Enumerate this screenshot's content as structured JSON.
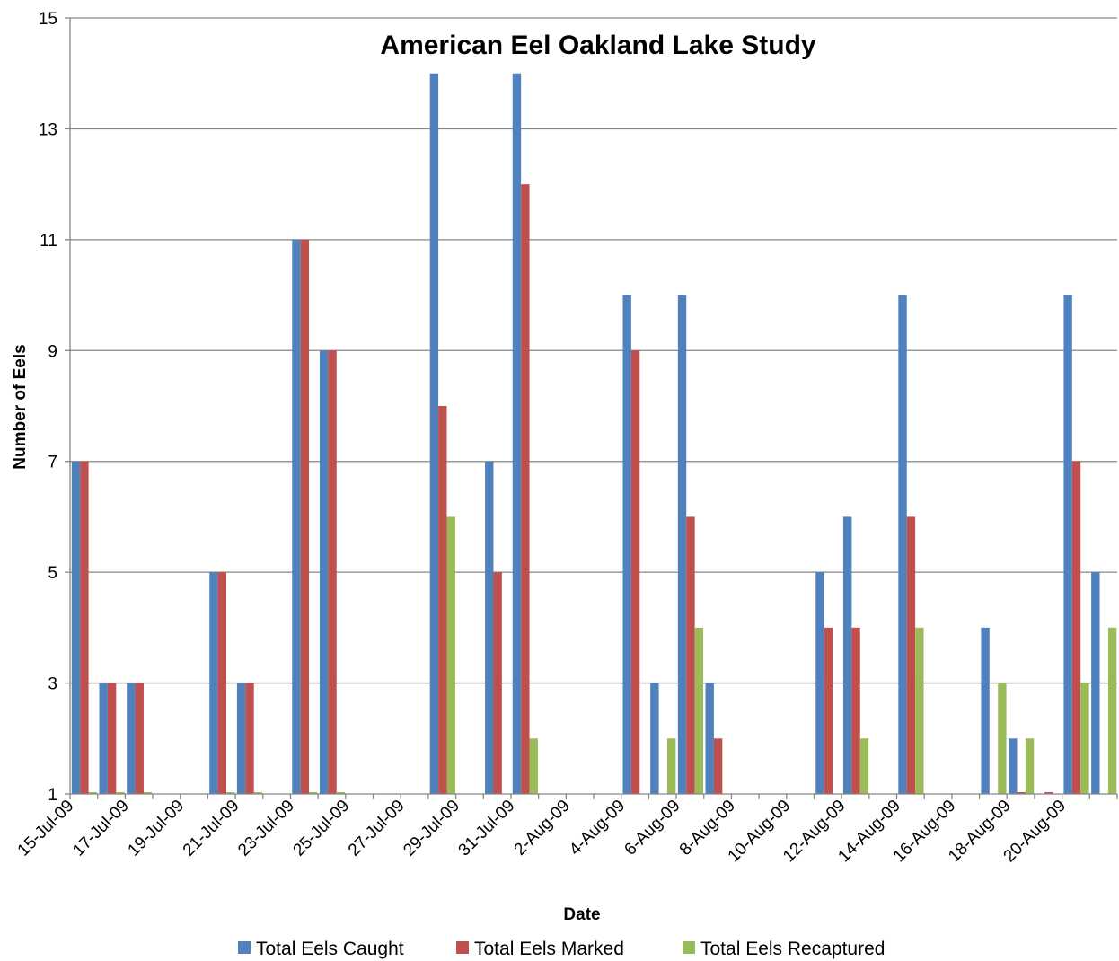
{
  "chart_data": {
    "type": "bar",
    "title": "American Eel Oakland Lake Study",
    "xlabel": "Date",
    "ylabel": "Number of Eels",
    "ylim": [
      1,
      15
    ],
    "y_ticks": [
      "1",
      "3",
      "5",
      "7",
      "9",
      "11",
      "13",
      "15"
    ],
    "x_tick_labels": [
      "15-Jul-09",
      "17-Jul-09",
      "19-Jul-09",
      "21-Jul-09",
      "23-Jul-09",
      "25-Jul-09",
      "27-Jul-09",
      "29-Jul-09",
      "31-Jul-09",
      "2-Aug-09",
      "4-Aug-09",
      "6-Aug-09",
      "8-Aug-09",
      "10-Aug-09",
      "12-Aug-09",
      "14-Aug-09",
      "16-Aug-09",
      "18-Aug-09",
      "20-Aug-09"
    ],
    "categories": [
      "15-Jul-09",
      "16-Jul-09",
      "17-Jul-09",
      "18-Jul-09",
      "19-Jul-09",
      "20-Jul-09",
      "21-Jul-09",
      "22-Jul-09",
      "23-Jul-09",
      "24-Jul-09",
      "25-Jul-09",
      "26-Jul-09",
      "27-Jul-09",
      "28-Jul-09",
      "29-Jul-09",
      "30-Jul-09",
      "31-Jul-09",
      "1-Aug-09",
      "2-Aug-09",
      "3-Aug-09",
      "4-Aug-09",
      "5-Aug-09",
      "6-Aug-09",
      "7-Aug-09",
      "8-Aug-09",
      "9-Aug-09",
      "10-Aug-09",
      "11-Aug-09",
      "12-Aug-09",
      "13-Aug-09",
      "14-Aug-09",
      "15-Aug-09",
      "16-Aug-09",
      "17-Aug-09",
      "18-Aug-09",
      "19-Aug-09",
      "20-Aug-09",
      "21-Aug-09"
    ],
    "series": [
      {
        "name": "Total Eels Caught",
        "color": "#4F81BD",
        "values": [
          7,
          3,
          3,
          null,
          null,
          5,
          3,
          null,
          11,
          9,
          null,
          null,
          null,
          14,
          null,
          7,
          14,
          null,
          null,
          null,
          10,
          3,
          10,
          3,
          null,
          null,
          null,
          5,
          6,
          null,
          10,
          null,
          null,
          4,
          2,
          null,
          10,
          5
        ]
      },
      {
        "name": "Total Eels Marked",
        "color": "#C0504D",
        "values": [
          7,
          3,
          3,
          null,
          null,
          5,
          3,
          null,
          11,
          9,
          null,
          null,
          null,
          8,
          null,
          5,
          12,
          null,
          null,
          null,
          9,
          null,
          6,
          2,
          null,
          null,
          null,
          4,
          4,
          null,
          6,
          null,
          null,
          null,
          1,
          1,
          7,
          null
        ]
      },
      {
        "name": "Total Eels Recaptured",
        "color": "#9BBB59",
        "values": [
          1,
          1,
          1,
          null,
          null,
          1,
          1,
          null,
          1,
          1,
          null,
          null,
          null,
          6,
          null,
          null,
          2,
          null,
          null,
          null,
          null,
          2,
          4,
          null,
          null,
          null,
          null,
          null,
          2,
          null,
          4,
          null,
          null,
          3,
          2,
          null,
          3,
          4
        ]
      }
    ],
    "grid": true,
    "legend": "bottom"
  }
}
